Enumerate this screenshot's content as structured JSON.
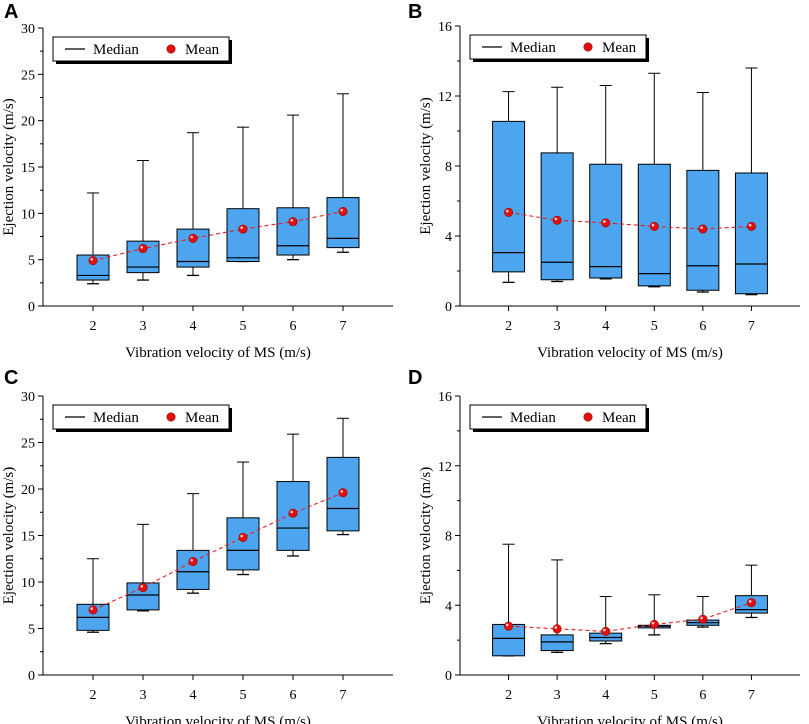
{
  "figure": {
    "colors": {
      "box_fill": "#4DA5F0",
      "mean_line": "#e02020",
      "mean_marker": "#e01010",
      "axis": "#000000"
    },
    "legend": {
      "median_label": "Median",
      "mean_label": "Mean"
    }
  },
  "chart_data": [
    {
      "panel": "A",
      "type": "box",
      "xlabel": "Vibration velocity of MS (m/s)",
      "ylabel": "Ejection velocity (m/s)",
      "ylim": [
        0,
        30
      ],
      "yticks": [
        0,
        5,
        10,
        15,
        20,
        25,
        30
      ],
      "categories": [
        2,
        3,
        4,
        5,
        6,
        7
      ],
      "boxes": [
        {
          "min": 2.4,
          "q1": 2.8,
          "median": 3.3,
          "q3": 5.5,
          "max": 12.2,
          "mean": 4.9
        },
        {
          "min": 2.8,
          "q1": 3.6,
          "median": 4.2,
          "q3": 7.0,
          "max": 15.7,
          "mean": 6.2
        },
        {
          "min": 3.3,
          "q1": 4.2,
          "median": 4.8,
          "q3": 8.3,
          "max": 18.7,
          "mean": 7.3
        },
        {
          "min": 4.8,
          "q1": 4.8,
          "median": 5.2,
          "q3": 10.5,
          "max": 19.3,
          "mean": 8.3
        },
        {
          "min": 5.0,
          "q1": 5.5,
          "median": 6.5,
          "q3": 10.6,
          "max": 20.6,
          "mean": 9.1
        },
        {
          "min": 5.8,
          "q1": 6.3,
          "median": 7.3,
          "q3": 11.7,
          "max": 22.9,
          "mean": 10.2
        }
      ]
    },
    {
      "panel": "B",
      "type": "box",
      "xlabel": "Vibration velocity of MS (m/s)",
      "ylabel": "Ejection velocity (m/s)",
      "ylim": [
        0,
        16
      ],
      "yticks": [
        0,
        4,
        8,
        12,
        16
      ],
      "categories": [
        2,
        3,
        4,
        5,
        6,
        7
      ],
      "boxes": [
        {
          "min": 1.35,
          "q1": 1.95,
          "median": 3.05,
          "q3": 10.55,
          "max": 12.25,
          "mean": 5.35
        },
        {
          "min": 1.4,
          "q1": 1.5,
          "median": 2.5,
          "q3": 8.75,
          "max": 12.5,
          "mean": 4.9
        },
        {
          "min": 1.55,
          "q1": 1.6,
          "median": 2.25,
          "q3": 8.1,
          "max": 12.6,
          "mean": 4.75
        },
        {
          "min": 1.1,
          "q1": 1.15,
          "median": 1.85,
          "q3": 8.1,
          "max": 13.3,
          "mean": 4.55
        },
        {
          "min": 0.8,
          "q1": 0.9,
          "median": 2.3,
          "q3": 7.75,
          "max": 12.2,
          "mean": 4.4
        },
        {
          "min": 0.65,
          "q1": 0.7,
          "median": 2.4,
          "q3": 7.6,
          "max": 13.6,
          "mean": 4.55
        }
      ]
    },
    {
      "panel": "C",
      "type": "box",
      "xlabel": "Vibration velocity of MS (m/s)",
      "ylabel": "Ejection velocity (m/s)",
      "ylim": [
        0,
        30
      ],
      "yticks": [
        0,
        5,
        10,
        15,
        20,
        25,
        30
      ],
      "categories": [
        2,
        3,
        4,
        5,
        6,
        7
      ],
      "boxes": [
        {
          "min": 4.6,
          "q1": 4.8,
          "median": 6.2,
          "q3": 7.6,
          "max": 12.5,
          "mean": 7.0
        },
        {
          "min": 6.9,
          "q1": 7.0,
          "median": 8.6,
          "q3": 9.9,
          "max": 16.2,
          "mean": 9.4
        },
        {
          "min": 8.8,
          "q1": 9.2,
          "median": 11.1,
          "q3": 13.4,
          "max": 19.5,
          "mean": 12.2
        },
        {
          "min": 10.8,
          "q1": 11.3,
          "median": 13.4,
          "q3": 16.9,
          "max": 22.9,
          "mean": 14.8
        },
        {
          "min": 12.8,
          "q1": 13.4,
          "median": 15.8,
          "q3": 20.8,
          "max": 25.9,
          "mean": 17.4
        },
        {
          "min": 15.1,
          "q1": 15.5,
          "median": 17.9,
          "q3": 23.4,
          "max": 27.6,
          "mean": 19.6
        }
      ]
    },
    {
      "panel": "D",
      "type": "box",
      "xlabel": "Vibration velocity of MS (m/s)",
      "ylabel": "Ejection velocity (m/s)",
      "ylim": [
        0,
        16
      ],
      "yticks": [
        0,
        4,
        8,
        12,
        16
      ],
      "categories": [
        2,
        3,
        4,
        5,
        6,
        7
      ],
      "boxes": [
        {
          "min": 1.1,
          "q1": 1.1,
          "median": 2.1,
          "q3": 2.9,
          "max": 7.5,
          "mean": 2.8
        },
        {
          "min": 1.3,
          "q1": 1.4,
          "median": 1.9,
          "q3": 2.3,
          "max": 6.6,
          "mean": 2.65
        },
        {
          "min": 1.8,
          "q1": 1.95,
          "median": 2.15,
          "q3": 2.4,
          "max": 4.5,
          "mean": 2.5
        },
        {
          "min": 2.3,
          "q1": 2.7,
          "median": 2.8,
          "q3": 2.85,
          "max": 4.6,
          "mean": 2.9
        },
        {
          "min": 2.75,
          "q1": 2.85,
          "median": 3.0,
          "q3": 3.15,
          "max": 4.5,
          "mean": 3.2
        },
        {
          "min": 3.3,
          "q1": 3.55,
          "median": 3.75,
          "q3": 4.55,
          "max": 6.3,
          "mean": 4.15
        }
      ]
    }
  ]
}
